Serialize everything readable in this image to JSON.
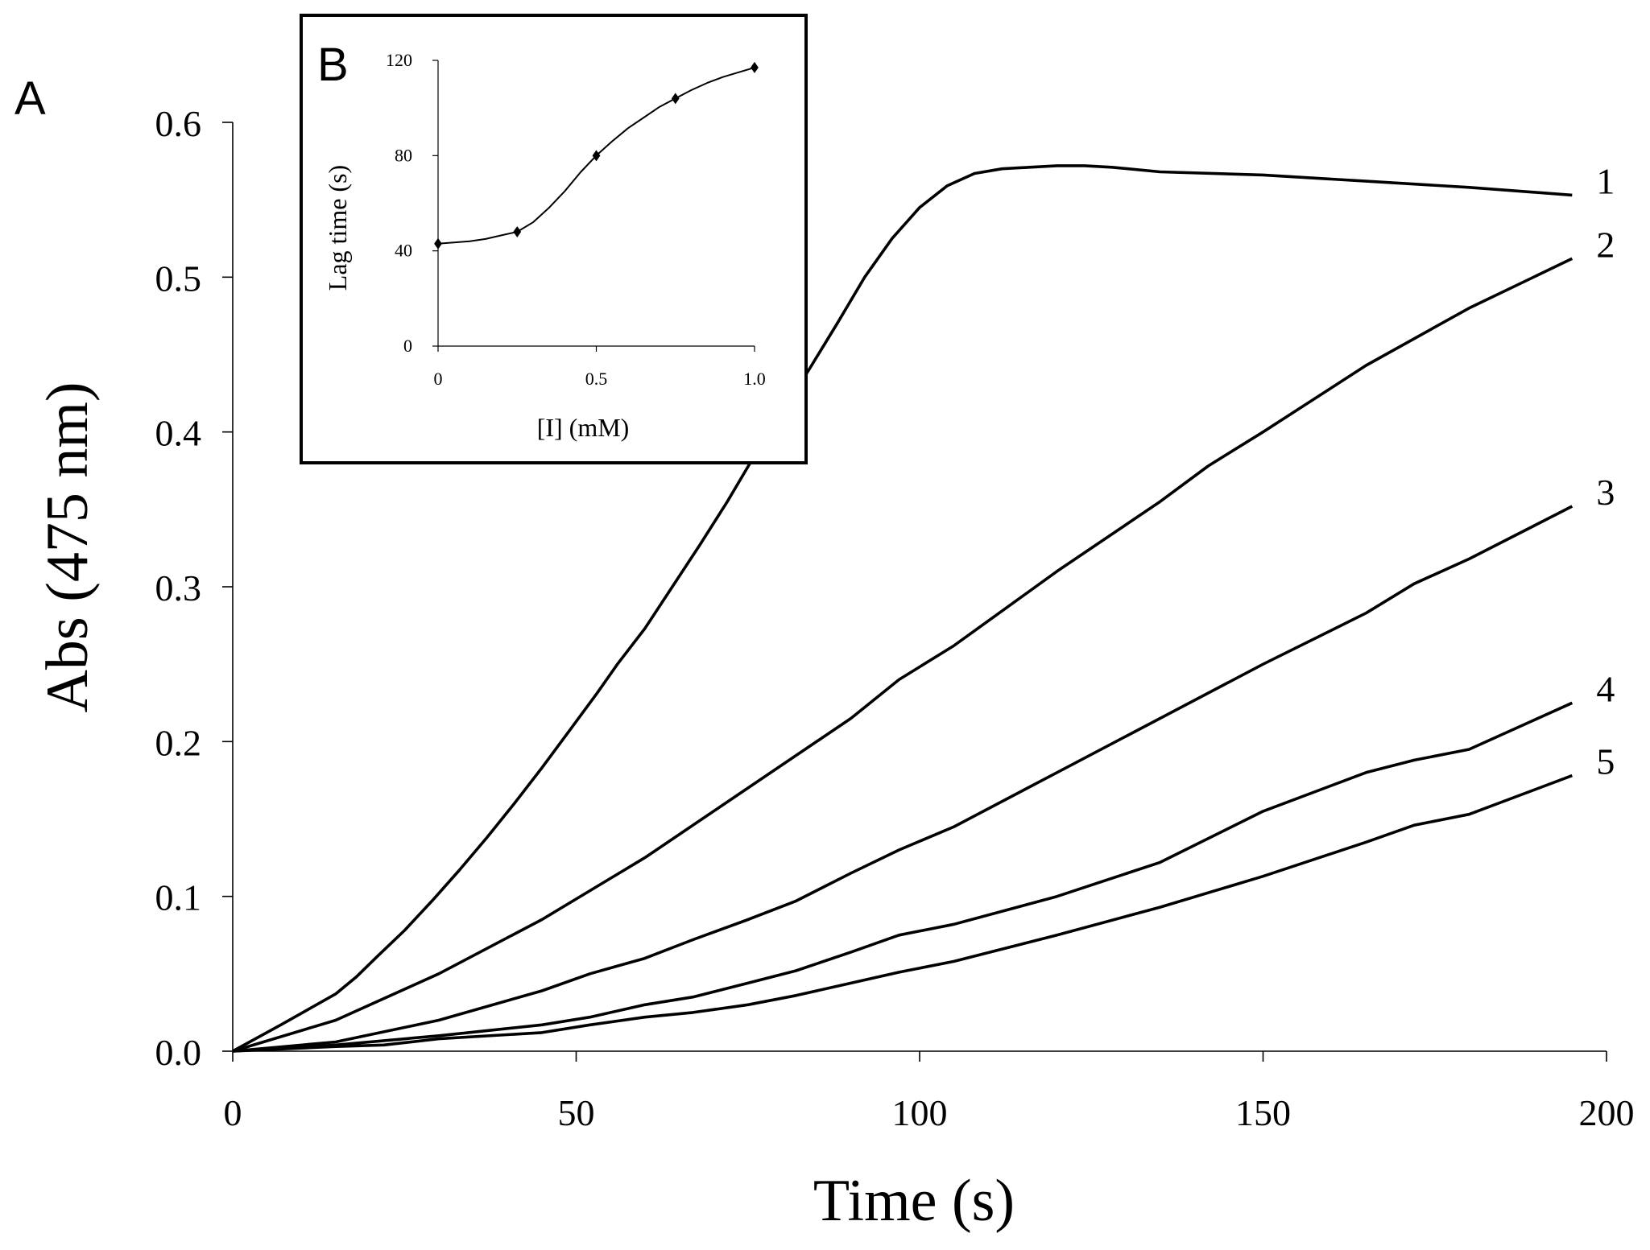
{
  "chart_data": [
    {
      "panel": "A",
      "type": "line",
      "xlabel": "Time (s)",
      "ylabel": "Abs (475 nm)",
      "xlim": [
        0,
        200
      ],
      "ylim": [
        0,
        0.6
      ],
      "xticks": [
        0,
        50,
        100,
        150,
        200
      ],
      "xtick_labels": [
        "0",
        "50",
        "100",
        "150",
        "200"
      ],
      "yticks": [
        0,
        0.1,
        0.2,
        0.3,
        0.4,
        0.5,
        0.6
      ],
      "ytick_labels": [
        "0.0",
        "0.1",
        "0.2",
        "0.3",
        "0.4",
        "0.5",
        "0.6"
      ],
      "grid": false,
      "series": [
        {
          "name": "1",
          "x": [
            0,
            7,
            11,
            15,
            18,
            21,
            25,
            29,
            33,
            37,
            41,
            45,
            49,
            53,
            56,
            60,
            64,
            68,
            72,
            76,
            80,
            84,
            88,
            92,
            96,
            100,
            104,
            108,
            112,
            116,
            120,
            124,
            128,
            135,
            150,
            165,
            180,
            195
          ],
          "y": [
            0,
            0.017,
            0.027,
            0.037,
            0.048,
            0.061,
            0.078,
            0.097,
            0.117,
            0.138,
            0.16,
            0.183,
            0.207,
            0.231,
            0.25,
            0.273,
            0.3,
            0.327,
            0.355,
            0.385,
            0.413,
            0.441,
            0.47,
            0.5,
            0.525,
            0.545,
            0.559,
            0.567,
            0.57,
            0.571,
            0.572,
            0.572,
            0.571,
            0.568,
            0.566,
            0.562,
            0.558,
            0.553
          ]
        },
        {
          "name": "2",
          "x": [
            0,
            15,
            30,
            45,
            60,
            75,
            90,
            97,
            105,
            120,
            135,
            142,
            150,
            165,
            180,
            195
          ],
          "y": [
            0,
            0.02,
            0.05,
            0.085,
            0.125,
            0.17,
            0.215,
            0.24,
            0.262,
            0.31,
            0.355,
            0.378,
            0.4,
            0.443,
            0.48,
            0.512
          ]
        },
        {
          "name": "3",
          "x": [
            0,
            15,
            30,
            45,
            52,
            60,
            67,
            75,
            82,
            90,
            97,
            105,
            120,
            135,
            150,
            165,
            172,
            180,
            195
          ],
          "y": [
            0,
            0.006,
            0.02,
            0.039,
            0.05,
            0.06,
            0.072,
            0.085,
            0.097,
            0.115,
            0.13,
            0.145,
            0.18,
            0.215,
            0.25,
            0.283,
            0.302,
            0.318,
            0.352
          ]
        },
        {
          "name": "4",
          "x": [
            0,
            15,
            30,
            45,
            52,
            60,
            67,
            75,
            82,
            90,
            97,
            105,
            120,
            135,
            150,
            165,
            172,
            180,
            195
          ],
          "y": [
            0,
            0.004,
            0.01,
            0.017,
            0.022,
            0.03,
            0.035,
            0.044,
            0.052,
            0.064,
            0.075,
            0.082,
            0.1,
            0.122,
            0.155,
            0.18,
            0.188,
            0.195,
            0.225
          ]
        },
        {
          "name": "5",
          "x": [
            0,
            15,
            22,
            30,
            45,
            52,
            60,
            67,
            75,
            82,
            90,
            97,
            105,
            120,
            135,
            150,
            165,
            172,
            180,
            195
          ],
          "y": [
            0,
            0.003,
            0.004,
            0.008,
            0.012,
            0.017,
            0.022,
            0.025,
            0.03,
            0.036,
            0.044,
            0.051,
            0.058,
            0.075,
            0.093,
            0.113,
            0.135,
            0.146,
            0.153,
            0.178
          ]
        }
      ]
    },
    {
      "panel": "B",
      "type": "line",
      "xlabel": "[I] (mM)",
      "ylabel": "Lag time (s)",
      "xlim": [
        0,
        1.0
      ],
      "ylim": [
        0,
        120
      ],
      "xticks": [
        0,
        0.5,
        1.0
      ],
      "xtick_labels": [
        "0",
        "0.5",
        "1.0"
      ],
      "yticks": [
        0,
        40,
        80,
        120
      ],
      "ytick_labels": [
        "0",
        "40",
        "80",
        "120"
      ],
      "grid": false,
      "markers": {
        "x": [
          0,
          0.25,
          0.5,
          0.75,
          1.0
        ],
        "y": [
          43,
          48,
          80,
          104,
          117
        ]
      },
      "curve": {
        "x": [
          0,
          0.05,
          0.1,
          0.15,
          0.2,
          0.25,
          0.3,
          0.35,
          0.4,
          0.45,
          0.5,
          0.55,
          0.6,
          0.65,
          0.7,
          0.75,
          0.8,
          0.85,
          0.9,
          0.95,
          1.0
        ],
        "y": [
          43,
          43.5,
          44,
          45,
          46.5,
          48,
          52,
          58,
          65,
          73,
          80,
          86,
          91.5,
          96,
          100.5,
          104,
          107.5,
          110.5,
          113,
          115,
          117
        ]
      }
    }
  ],
  "panel_labels": {
    "a": "A",
    "b": "B"
  },
  "colors": {
    "line": "#000000",
    "background": "#ffffff"
  }
}
